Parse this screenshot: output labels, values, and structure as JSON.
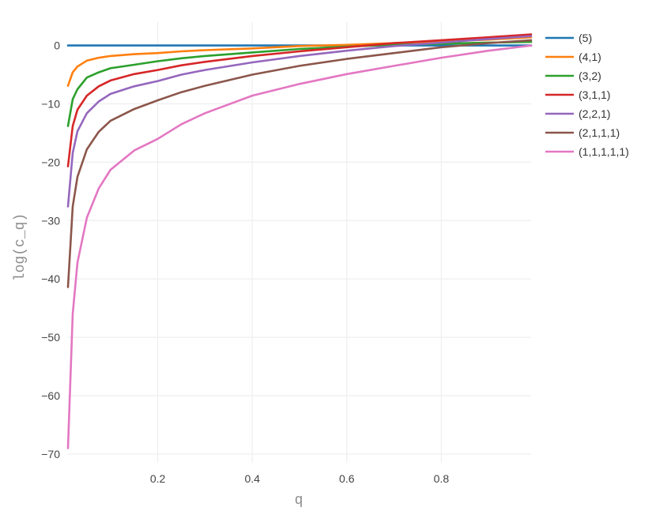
{
  "chart_data": {
    "type": "line",
    "title": "",
    "xlabel": "q",
    "ylabel": "log(c_q)",
    "xlim": [
      0.01,
      0.99
    ],
    "ylim": [
      -71.5,
      4
    ],
    "xticks": [
      0.2,
      0.4,
      0.6,
      0.8
    ],
    "xtick_labels": [
      "0.2",
      "0.4",
      "0.6",
      "0.8"
    ],
    "yticks": [
      0,
      -10,
      -20,
      -30,
      -40,
      -50,
      -60,
      -70
    ],
    "ytick_labels": [
      "0",
      "−10",
      "−20",
      "−30",
      "−40",
      "−50",
      "−60",
      "−70"
    ],
    "grid": true,
    "legend_position": "top-right",
    "x": [
      0.01,
      0.02,
      0.03,
      0.05,
      0.075,
      0.1,
      0.15,
      0.2,
      0.25,
      0.3,
      0.4,
      0.5,
      0.6,
      0.7,
      0.8,
      0.9,
      0.99
    ],
    "series": [
      {
        "name": "(5)",
        "color": "#1f77b4",
        "values": [
          0,
          0,
          0,
          0,
          0,
          0,
          0,
          0,
          0,
          0,
          0,
          0,
          0,
          0,
          0,
          0,
          0
        ]
      },
      {
        "name": "(4,1)",
        "color": "#ff7f0e",
        "values": [
          -6.9,
          -4.6,
          -3.6,
          -2.6,
          -2.1,
          -1.8,
          -1.5,
          -1.3,
          -1.0,
          -0.8,
          -0.5,
          -0.1,
          0.1,
          0.4,
          0.7,
          1.0,
          1.4
        ]
      },
      {
        "name": "(3,2)",
        "color": "#2ca02c",
        "values": [
          -13.8,
          -9.2,
          -7.5,
          -5.5,
          -4.6,
          -3.9,
          -3.3,
          -2.7,
          -2.2,
          -1.8,
          -1.2,
          -0.6,
          -0.2,
          0.1,
          0.3,
          0.5,
          0.6
        ]
      },
      {
        "name": "(3,1,1)",
        "color": "#d62728",
        "values": [
          -20.7,
          -13.8,
          -11.0,
          -8.6,
          -7.0,
          -6.0,
          -4.9,
          -4.2,
          -3.4,
          -2.8,
          -1.8,
          -1.0,
          -0.3,
          0.4,
          0.9,
          1.4,
          1.9
        ]
      },
      {
        "name": "(2,2,1)",
        "color": "#9467bd",
        "values": [
          -27.6,
          -18.4,
          -14.7,
          -11.6,
          -9.6,
          -8.3,
          -7.0,
          -6.1,
          -5.0,
          -4.2,
          -2.9,
          -1.8,
          -0.9,
          -0.1,
          0.5,
          1.1,
          1.6
        ]
      },
      {
        "name": "(2,1,1,1)",
        "color": "#8c564b",
        "values": [
          -41.4,
          -27.6,
          -22.5,
          -17.8,
          -14.8,
          -12.9,
          -10.9,
          -9.4,
          -8.0,
          -6.9,
          -5.0,
          -3.5,
          -2.3,
          -1.3,
          -0.3,
          0.4,
          0.9
        ]
      },
      {
        "name": "(1,1,1,1,1)",
        "color": "#e377c2",
        "values": [
          -69.0,
          -46.0,
          -37.2,
          -29.5,
          -24.5,
          -21.3,
          -18.0,
          -16.0,
          -13.5,
          -11.6,
          -8.6,
          -6.6,
          -4.9,
          -3.5,
          -2.1,
          -0.9,
          0.0
        ]
      }
    ]
  }
}
